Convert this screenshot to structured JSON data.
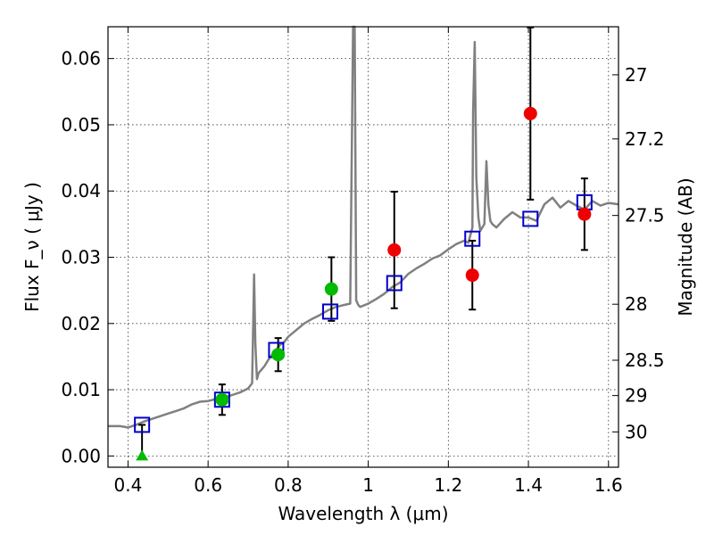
{
  "chart_data": {
    "type": "scatter",
    "xlabel": "Wavelength  λ (μm)",
    "ylabel": "Flux  F_ν  ( μJy )",
    "y2label": "Magnitude (AB)",
    "xlim": [
      0.35,
      1.625
    ],
    "ylim": [
      -0.0017,
      0.0648
    ],
    "grid": true,
    "x_ticks": [
      {
        "value": 0.4,
        "label": "0.4"
      },
      {
        "value": 0.6,
        "label": "0.6"
      },
      {
        "value": 0.8,
        "label": "0.8"
      },
      {
        "value": 1.0,
        "label": "1"
      },
      {
        "value": 1.2,
        "label": "1.2"
      },
      {
        "value": 1.4,
        "label": "1.4"
      },
      {
        "value": 1.6,
        "label": "1.6"
      }
    ],
    "y_ticks": [
      {
        "value": 0.0,
        "label": "0.00"
      },
      {
        "value": 0.01,
        "label": "0.01"
      },
      {
        "value": 0.02,
        "label": "0.02"
      },
      {
        "value": 0.03,
        "label": "0.03"
      },
      {
        "value": 0.04,
        "label": "0.04"
      },
      {
        "value": 0.05,
        "label": "0.05"
      },
      {
        "value": 0.06,
        "label": "0.06"
      }
    ],
    "y2_ticks": [
      {
        "value": 27,
        "label": "27"
      },
      {
        "value": 27.2,
        "label": "27.2"
      },
      {
        "value": 27.5,
        "label": "27.5"
      },
      {
        "value": 28,
        "label": "28"
      },
      {
        "value": 28.5,
        "label": "28.5"
      },
      {
        "value": 29,
        "label": "29"
      },
      {
        "value": 30,
        "label": "30"
      }
    ],
    "series": [
      {
        "marker": "line",
        "color": "#808080",
        "x": [
          0.35,
          0.38,
          0.4,
          0.42,
          0.44,
          0.46,
          0.48,
          0.5,
          0.52,
          0.54,
          0.56,
          0.58,
          0.6,
          0.62,
          0.64,
          0.66,
          0.68,
          0.7,
          0.71,
          0.715,
          0.718,
          0.722,
          0.726,
          0.73,
          0.74,
          0.75,
          0.76,
          0.77,
          0.78,
          0.79,
          0.8,
          0.82,
          0.84,
          0.86,
          0.88,
          0.9,
          0.92,
          0.94,
          0.955,
          0.962,
          0.966,
          0.97,
          0.975,
          0.98,
          1.0,
          1.02,
          1.04,
          1.06,
          1.08,
          1.1,
          1.12,
          1.14,
          1.16,
          1.18,
          1.2,
          1.22,
          1.24,
          1.25,
          1.26,
          1.262,
          1.266,
          1.27,
          1.275,
          1.28,
          1.29,
          1.295,
          1.3,
          1.305,
          1.31,
          1.32,
          1.34,
          1.36,
          1.38,
          1.4,
          1.42,
          1.44,
          1.46,
          1.48,
          1.5,
          1.52,
          1.54,
          1.56,
          1.58,
          1.6,
          1.625
        ],
        "y": [
          0.0045,
          0.0045,
          0.0043,
          0.0047,
          0.0052,
          0.0056,
          0.006,
          0.0064,
          0.0068,
          0.0072,
          0.0078,
          0.0082,
          0.0083,
          0.0086,
          0.0088,
          0.0092,
          0.0096,
          0.0102,
          0.011,
          0.0274,
          0.017,
          0.0116,
          0.0125,
          0.0128,
          0.0135,
          0.0145,
          0.0153,
          0.016,
          0.0168,
          0.0172,
          0.018,
          0.019,
          0.02,
          0.0207,
          0.0213,
          0.022,
          0.0225,
          0.0228,
          0.023,
          0.065,
          0.065,
          0.0235,
          0.0228,
          0.0225,
          0.023,
          0.0237,
          0.0245,
          0.0255,
          0.0262,
          0.0275,
          0.0283,
          0.029,
          0.0298,
          0.0303,
          0.0312,
          0.032,
          0.0325,
          0.0322,
          0.0345,
          0.052,
          0.0625,
          0.042,
          0.036,
          0.034,
          0.035,
          0.0445,
          0.038,
          0.0355,
          0.035,
          0.0345,
          0.0358,
          0.0368,
          0.036,
          0.036,
          0.0355,
          0.038,
          0.039,
          0.0375,
          0.0385,
          0.0378,
          0.0372,
          0.0385,
          0.0378,
          0.0382,
          0.038
        ]
      },
      {
        "marker": "open-square",
        "color": "#0000cc",
        "x": [
          0.435,
          0.635,
          0.77,
          0.905,
          1.065,
          1.26,
          1.405,
          1.54
        ],
        "y": [
          0.0047,
          0.0085,
          0.016,
          0.0218,
          0.0261,
          0.0328,
          0.0358,
          0.0383
        ]
      },
      {
        "marker": "filled-circle",
        "color": "#00bb00",
        "x": [
          0.635,
          0.775,
          0.908
        ],
        "y": [
          0.0085,
          0.0153,
          0.0252
        ],
        "yerr": [
          0.0023,
          0.0025,
          0.0048
        ]
      },
      {
        "marker": "filled-circle",
        "color": "#ee0000",
        "x": [
          1.065,
          1.26,
          1.405,
          1.54
        ],
        "y": [
          0.0311,
          0.0273,
          0.0517,
          0.0365
        ],
        "yerr": [
          0.0088,
          0.0052,
          0.013,
          0.0054
        ]
      },
      {
        "marker": "filled-triangle",
        "color": "#00bb00",
        "x": [
          0.435
        ],
        "y": [
          0.0
        ],
        "yerr_up": [
          0.0047
        ]
      }
    ]
  }
}
